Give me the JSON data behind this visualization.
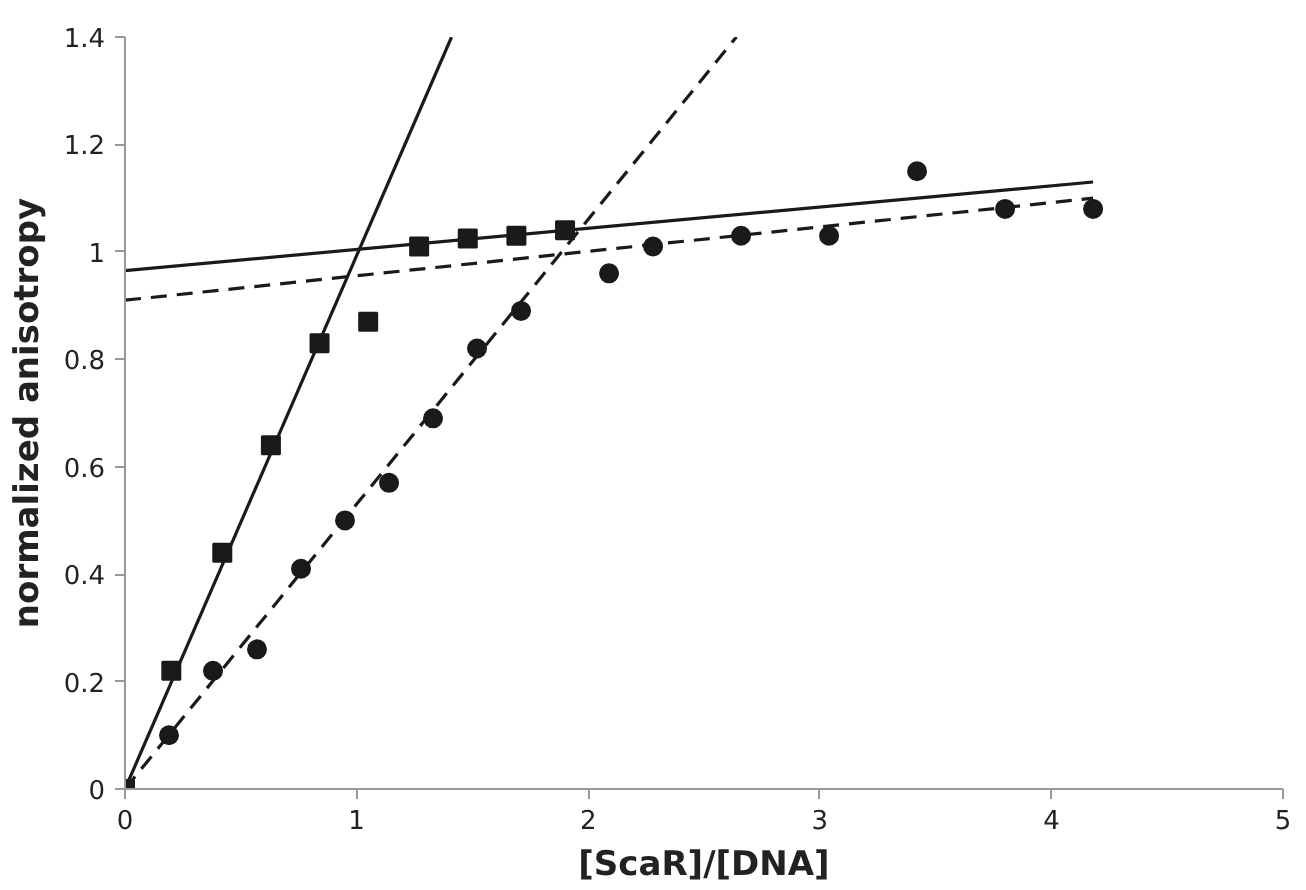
{
  "chart_data": {
    "type": "scatter",
    "xlabel": "[ScaR]/[DNA]",
    "ylabel": "normalized anisotropy",
    "xlim": [
      0,
      5
    ],
    "ylim": [
      0,
      1.4
    ],
    "xticks": [
      0,
      1,
      2,
      3,
      4,
      5
    ],
    "yticks": [
      0,
      0.2,
      0.4,
      0.6,
      0.8,
      1,
      1.2,
      1.4
    ],
    "grid": false,
    "series": [
      {
        "type": "line",
        "line_style": "solid",
        "color": "#1a1a1a",
        "x": [
          0,
          1.41
        ],
        "values": [
          0,
          1.4
        ]
      },
      {
        "type": "line",
        "line_style": "solid",
        "color": "#1a1a1a",
        "x": [
          0,
          4.18
        ],
        "values": [
          0.965,
          1.13
        ]
      },
      {
        "type": "line",
        "line_style": "dashed",
        "color": "#1a1a1a",
        "x": [
          0,
          2.64
        ],
        "values": [
          0,
          1.4
        ]
      },
      {
        "type": "line",
        "line_style": "dashed",
        "color": "#1a1a1a",
        "x": [
          0,
          4.18
        ],
        "values": [
          0.91,
          1.1
        ]
      },
      {
        "marker": "circle",
        "color": "#1a1a1a",
        "x": [
          0.19,
          0.38,
          0.57,
          0.76,
          0.95,
          1.14,
          1.33,
          1.52,
          1.71,
          2.09,
          2.28,
          2.66,
          3.04,
          3.42,
          3.8,
          4.18
        ],
        "values": [
          0.1,
          0.22,
          0.26,
          0.41,
          0.5,
          0.57,
          0.69,
          0.82,
          0.89,
          0.96,
          1.01,
          1.03,
          1.03,
          1.15,
          1.08,
          1.08
        ]
      },
      {
        "marker": "square",
        "color": "#1a1a1a",
        "x": [
          0,
          0.2,
          0.42,
          0.63,
          0.84,
          1.05,
          1.27,
          1.48,
          1.69,
          1.9
        ],
        "values": [
          0,
          0.22,
          0.44,
          0.64,
          0.83,
          0.87,
          1.01,
          1.025,
          1.03,
          1.04
        ]
      }
    ]
  }
}
